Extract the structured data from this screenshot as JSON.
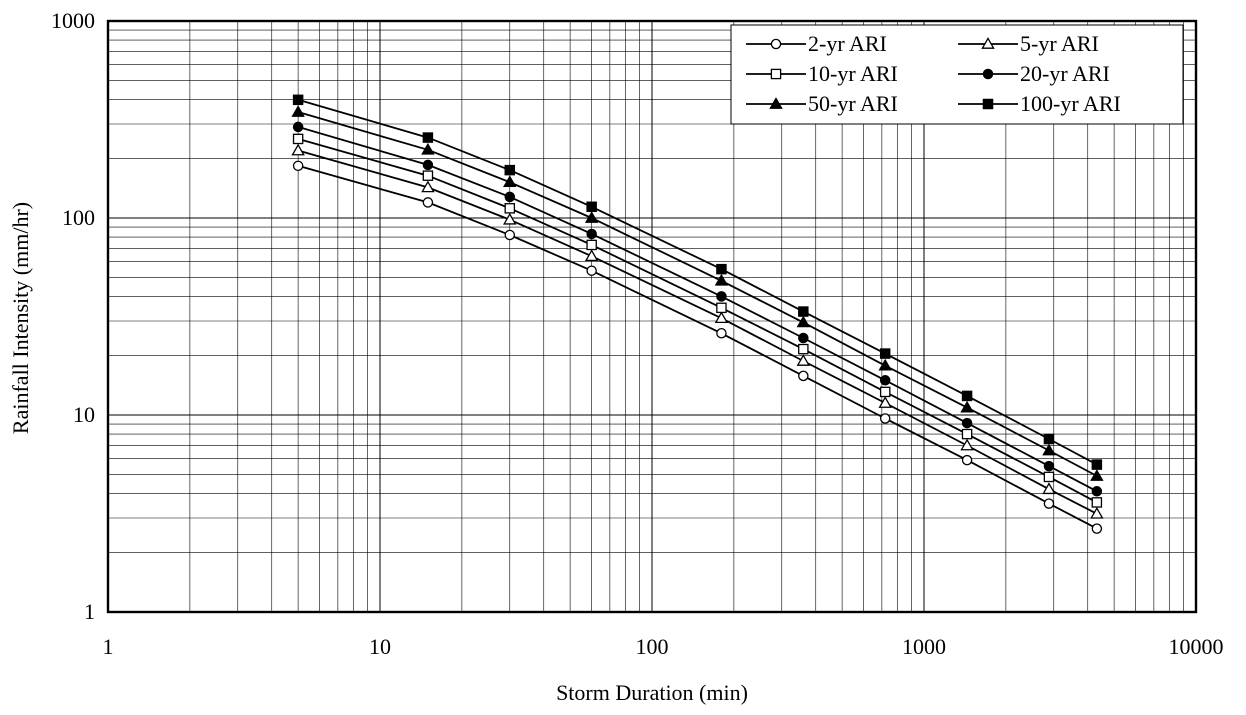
{
  "chart_data": {
    "type": "line",
    "title": "",
    "xlabel": "Storm Duration (min)",
    "ylabel": "Rainfall Intensity (mm/hr)",
    "xscale": "log",
    "yscale": "log",
    "xlim": [
      1,
      10000
    ],
    "ylim": [
      1,
      1000
    ],
    "x_tick_labels": [
      "1",
      "10",
      "100",
      "1000",
      "10000"
    ],
    "y_tick_labels": [
      "1",
      "10",
      "100",
      "1000"
    ],
    "grid": true,
    "legend_position": "top-right",
    "x": [
      5,
      15,
      30,
      60,
      180,
      360,
      720,
      1440,
      2880,
      4320
    ],
    "series": [
      {
        "name": "2-yr ARI",
        "marker": "circle-open",
        "values": [
          184,
          120,
          82,
          54,
          26,
          15.8,
          9.6,
          5.9,
          3.55,
          2.65
        ]
      },
      {
        "name": "5-yr ARI",
        "marker": "triangle-open",
        "values": [
          220,
          143,
          98,
          64,
          31,
          18.8,
          11.5,
          7.0,
          4.2,
          3.15
        ]
      },
      {
        "name": "10-yr ARI",
        "marker": "square-open",
        "values": [
          252,
          164,
          112,
          73,
          35,
          21.6,
          13.1,
          8.0,
          4.85,
          3.6
        ]
      },
      {
        "name": "20-yr ARI",
        "marker": "circle-filled",
        "values": [
          290,
          186,
          128,
          83,
          40,
          24.6,
          15.0,
          9.1,
          5.5,
          4.1
        ]
      },
      {
        "name": "50-yr ARI",
        "marker": "triangle-filled",
        "values": [
          345,
          222,
          152,
          100,
          48,
          29.5,
          17.8,
          10.9,
          6.6,
          4.9
        ]
      },
      {
        "name": "100-yr ARI",
        "marker": "square-filled",
        "values": [
          398,
          256,
          175,
          114,
          55,
          33.5,
          20.5,
          12.5,
          7.55,
          5.6
        ]
      }
    ]
  }
}
